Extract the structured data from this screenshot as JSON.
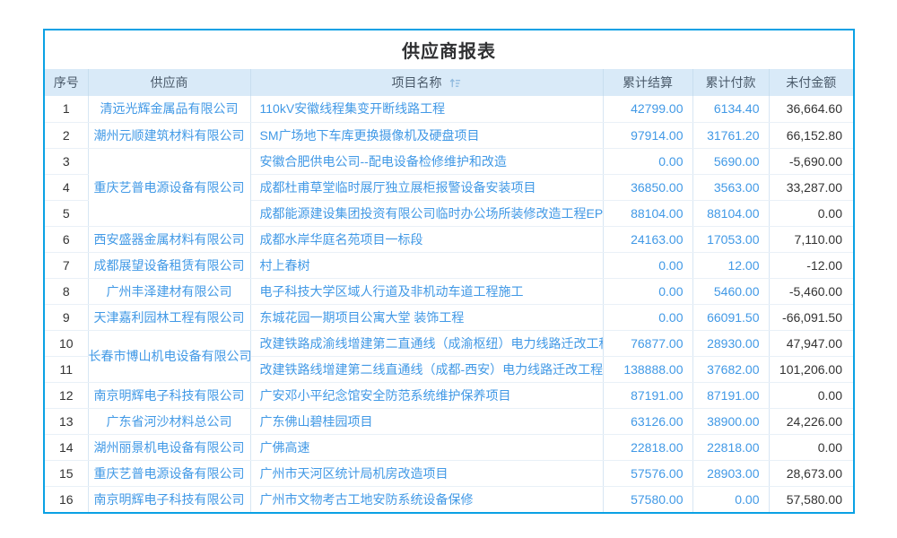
{
  "report": {
    "title": "供应商报表",
    "colors": {
      "outer_border": "#0aa1e4",
      "header_bg": "#d9eaf8",
      "header_text": "#4a5a6a",
      "link_blue": "#4199e6",
      "dark_text": "#333333",
      "grid_line": "#d7e6f3"
    },
    "sort_icon": "sort-ascending",
    "columns": [
      "序号",
      "供应商",
      "项目名称",
      "累计结算",
      "累计付款",
      "未付金额"
    ],
    "rows": [
      {
        "no": "1",
        "supplier": "清远光辉金属品有限公司",
        "rowspan": 1,
        "project": "110kV安徽线程集变开断线路工程",
        "settled": "42799.00",
        "paid": "6134.40",
        "unpaid": "36,664.60"
      },
      {
        "no": "2",
        "supplier": "潮州元顺建筑材料有限公司",
        "rowspan": 1,
        "project": "SM广场地下车库更换摄像机及硬盘项目",
        "settled": "97914.00",
        "paid": "31761.20",
        "unpaid": "66,152.80"
      },
      {
        "no": "3",
        "supplier": "重庆艺普电源设备有限公司",
        "rowspan": 3,
        "project": "安徽合肥供电公司--配电设备检修维护和改造",
        "settled": "0.00",
        "paid": "5690.00",
        "unpaid": "-5,690.00"
      },
      {
        "no": "4",
        "supplier": null,
        "rowspan": 0,
        "project": "成都杜甫草堂临时展厅独立展柜报警设备安装项目",
        "settled": "36850.00",
        "paid": "3563.00",
        "unpaid": "33,287.00"
      },
      {
        "no": "5",
        "supplier": null,
        "rowspan": 0,
        "project": "成都能源建设集团投资有限公司临时办公场所装修改造工程EPC总承包",
        "settled": "88104.00",
        "paid": "88104.00",
        "unpaid": "0.00"
      },
      {
        "no": "6",
        "supplier": "西安盛器金属材料有限公司",
        "rowspan": 1,
        "project": "成都水岸华庭名苑项目一标段",
        "settled": "24163.00",
        "paid": "17053.00",
        "unpaid": "7,110.00"
      },
      {
        "no": "7",
        "supplier": "成都展望设备租赁有限公司",
        "rowspan": 1,
        "project": "村上春树",
        "settled": "0.00",
        "paid": "12.00",
        "unpaid": "-12.00"
      },
      {
        "no": "8",
        "supplier": "广州丰泽建材有限公司",
        "rowspan": 1,
        "project": "电子科技大学区域人行道及非机动车道工程施工",
        "settled": "0.00",
        "paid": "5460.00",
        "unpaid": "-5,460.00"
      },
      {
        "no": "9",
        "supplier": "天津嘉利园林工程有限公司",
        "rowspan": 1,
        "project": "东城花园一期项目公寓大堂 装饰工程",
        "settled": "0.00",
        "paid": "66091.50",
        "unpaid": "-66,091.50"
      },
      {
        "no": "10",
        "supplier": "长春市博山机电设备有限公司",
        "rowspan": 2,
        "project": "改建铁路成渝线增建第二直通线（成渝枢纽）电力线路迁改工程",
        "settled": "76877.00",
        "paid": "28930.00",
        "unpaid": "47,947.00"
      },
      {
        "no": "11",
        "supplier": null,
        "rowspan": 0,
        "project": "改建铁路线增建第二线直通线（成都-西安）电力线路迁改工程",
        "settled": "138888.00",
        "paid": "37682.00",
        "unpaid": "101,206.00"
      },
      {
        "no": "12",
        "supplier": "南京明辉电子科技有限公司",
        "rowspan": 1,
        "project": "广安邓小平纪念馆安全防范系统维护保养项目",
        "settled": "87191.00",
        "paid": "87191.00",
        "unpaid": "0.00"
      },
      {
        "no": "13",
        "supplier": "广东省河沙材料总公司",
        "rowspan": 1,
        "project": "广东佛山碧桂园项目",
        "settled": "63126.00",
        "paid": "38900.00",
        "unpaid": "24,226.00"
      },
      {
        "no": "14",
        "supplier": "湖州丽景机电设备有限公司",
        "rowspan": 1,
        "project": "广佛高速",
        "settled": "22818.00",
        "paid": "22818.00",
        "unpaid": "0.00"
      },
      {
        "no": "15",
        "supplier": "重庆艺普电源设备有限公司",
        "rowspan": 1,
        "project": "广州市天河区统计局机房改造项目",
        "settled": "57576.00",
        "paid": "28903.00",
        "unpaid": "28,673.00"
      },
      {
        "no": "16",
        "supplier": "南京明辉电子科技有限公司",
        "rowspan": 1,
        "project": "广州市文物考古工地安防系统设备保修",
        "settled": "57580.00",
        "paid": "0.00",
        "unpaid": "57,580.00"
      }
    ]
  }
}
